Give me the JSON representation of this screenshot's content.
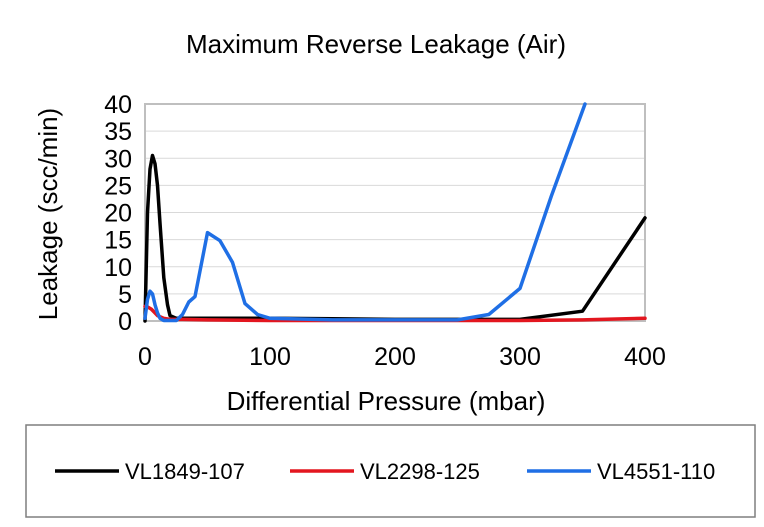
{
  "chart_data": {
    "type": "line",
    "title": "Maximum Reverse Leakage (Air)",
    "xlabel": "Differential Pressure (mbar)",
    "ylabel": "Leakage (scc/min)",
    "xlim": [
      0,
      400
    ],
    "ylim": [
      0,
      40
    ],
    "xticks": [
      "0",
      "100",
      "200",
      "300",
      "400"
    ],
    "yticks": [
      "0",
      "5",
      "10",
      "15",
      "20",
      "25",
      "30",
      "35",
      "40"
    ],
    "grid": "horizontal",
    "legend_position": "bottom",
    "series": [
      {
        "name": "VL1849-107",
        "color": "#000000",
        "x": [
          0,
          2,
          4,
          6,
          8,
          10,
          12,
          15,
          18,
          20,
          25,
          30,
          50,
          75,
          100,
          150,
          200,
          250,
          300,
          350,
          400
        ],
        "y": [
          0,
          20,
          28,
          30.5,
          29,
          25,
          18,
          8,
          3,
          1,
          0.5,
          0.5,
          0.5,
          0.5,
          0.5,
          0.4,
          0.3,
          0.3,
          0.3,
          1.8,
          19
        ]
      },
      {
        "name": "VL2298-125",
        "color": "#e3161f",
        "x": [
          0,
          2,
          5,
          8,
          10,
          15,
          20,
          30,
          50,
          100,
          150,
          200,
          250,
          300,
          350,
          400
        ],
        "y": [
          2.7,
          2.6,
          2.2,
          1.5,
          1,
          0.5,
          0.3,
          0.3,
          0.2,
          0.1,
          0.1,
          0.1,
          0.1,
          0.1,
          0.2,
          0.5
        ]
      },
      {
        "name": "VL4551-110",
        "color": "#1f6fe5",
        "x": [
          0,
          2,
          4,
          6,
          8,
          10,
          12,
          15,
          20,
          25,
          30,
          35,
          40,
          50,
          60,
          70,
          80,
          90,
          100,
          150,
          200,
          250,
          275,
          300,
          325,
          352
        ],
        "y": [
          0.5,
          4,
          5.5,
          5,
          3,
          1.5,
          0.5,
          0.1,
          0.1,
          0.1,
          1.2,
          3.5,
          4.5,
          16.3,
          14.8,
          10.8,
          3.2,
          1.2,
          0.5,
          0.2,
          0.2,
          0.2,
          1.2,
          6,
          23,
          40
        ]
      }
    ]
  }
}
